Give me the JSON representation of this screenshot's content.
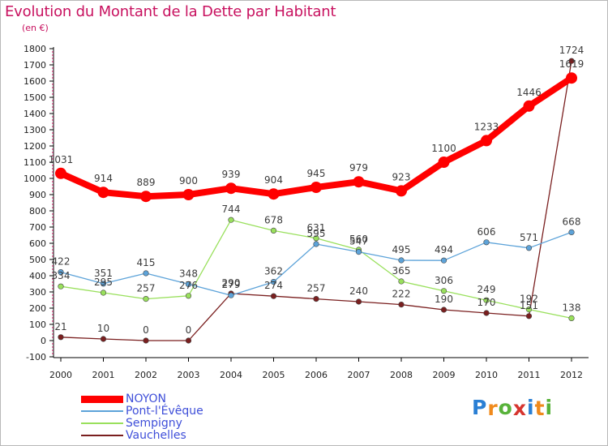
{
  "header": {
    "title": "Evolution du Montant de la Dette par Habitant",
    "subtitle": "(en €)"
  },
  "brand": {
    "letters": [
      "P",
      "r",
      "o",
      "x",
      "i",
      "t",
      "i"
    ],
    "colors": [
      "#2a7fd4",
      "#f08a1c",
      "#58b23a",
      "#d6342e",
      "#2a7fd4",
      "#f08a1c",
      "#58b23a"
    ]
  },
  "chart_data": {
    "type": "line",
    "title": "Evolution du Montant de la Dette par Habitant",
    "subtitle": "(en €)",
    "x": [
      "2000",
      "2001",
      "2002",
      "2003",
      "2004",
      "2005",
      "2006",
      "2007",
      "2008",
      "2009",
      "2010",
      "2011",
      "2012"
    ],
    "ylim": [
      -100,
      1800
    ],
    "yticks": [
      "-100",
      "0",
      "100",
      "200",
      "300",
      "400",
      "500",
      "600",
      "700",
      "800",
      "900",
      "1000",
      "1100",
      "1200",
      "1300",
      "1400",
      "1500",
      "1600",
      "1700",
      "1800"
    ],
    "grid": false,
    "legend": "bottom-left",
    "series": [
      {
        "name": "NOYON",
        "color": "#ff0000",
        "values": [
          1031,
          914,
          889,
          900,
          939,
          904,
          945,
          979,
          923,
          1100,
          1233,
          1446,
          1619
        ],
        "labels": [
          "1031",
          "914",
          "889",
          "900",
          "939",
          "904",
          "945",
          "979",
          "923",
          "1100",
          "1233",
          "1446",
          "1619"
        ]
      },
      {
        "name": "Pont-l'Évêque",
        "color": "#5da3d9",
        "values": [
          422,
          351,
          415,
          348,
          279,
          362,
          595,
          547,
          495,
          494,
          606,
          571,
          668
        ],
        "labels": [
          "422",
          "351",
          "415",
          "348",
          "279",
          "362",
          "595",
          "547",
          "495",
          "494",
          "606",
          "571",
          "668"
        ]
      },
      {
        "name": "Sempigny",
        "color": "#99e05c",
        "values": [
          334,
          295,
          257,
          276,
          744,
          678,
          631,
          560,
          365,
          306,
          249,
          192,
          138
        ],
        "labels": [
          "334",
          "295",
          "257",
          "276",
          "744",
          "678",
          "631",
          "560",
          "365",
          "306",
          "249",
          "192",
          "138"
        ]
      },
      {
        "name": "Vauchelles",
        "color": "#7a1f1f",
        "values": [
          21,
          10,
          0,
          0,
          290,
          274,
          257,
          240,
          222,
          190,
          170,
          151,
          1724
        ],
        "labels": [
          "21",
          "10",
          "0",
          "0",
          "290",
          "274",
          "257",
          "240",
          "222",
          "190",
          "170",
          "151",
          "1724"
        ]
      }
    ]
  }
}
